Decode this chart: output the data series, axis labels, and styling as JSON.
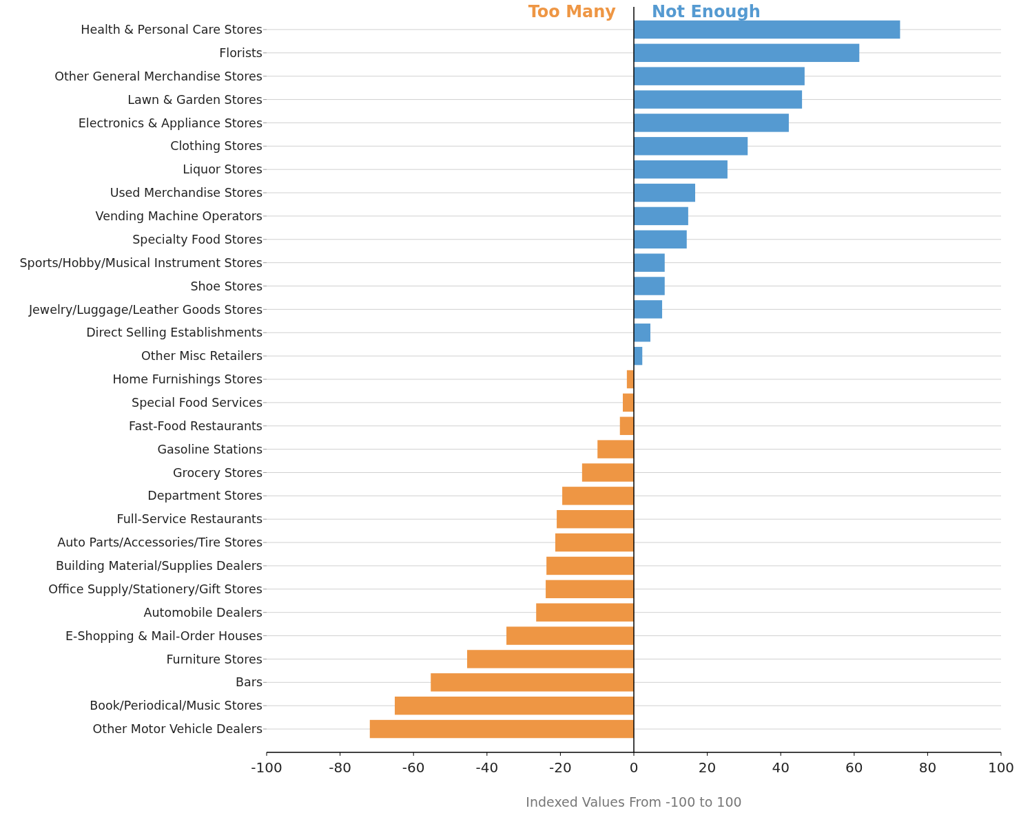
{
  "chart_data": {
    "type": "bar",
    "orientation": "horizontal",
    "xlabel": "Indexed Values From -100 to 100",
    "categories": [
      "Health & Personal Care Stores",
      "Florists",
      "Other General Merchandise Stores",
      "Lawn & Garden Stores",
      "Electronics & Appliance Stores",
      "Clothing Stores",
      "Liquor Stores",
      "Used Merchandise Stores",
      "Vending Machine Operators",
      "Specialty Food Stores",
      "Sports/Hobby/Musical Instrument Stores",
      "Shoe Stores",
      "Jewelry/Luggage/Leather Goods Stores",
      "Direct Selling Establishments",
      "Other Misc Retailers",
      "Home Furnishings Stores",
      "Special Food Services",
      "Fast-Food Restaurants",
      "Gasoline Stations",
      "Grocery Stores",
      "Department Stores",
      "Full-Service Restaurants",
      "Auto Parts/Accessories/Tire Stores",
      "Building Material/Supplies Dealers",
      "Office Supply/Stationery/Gift Stores",
      "Automobile Dealers",
      "E-Shopping & Mail-Order Houses",
      "Furniture Stores",
      "Bars",
      "Book/Periodical/Music Stores",
      "Other Motor Vehicle Dealers"
    ],
    "series": [
      {
        "name": "Too Many",
        "color": "#ee9644",
        "values": [
          null,
          null,
          null,
          null,
          null,
          null,
          null,
          null,
          null,
          null,
          null,
          null,
          null,
          null,
          null,
          -1.9,
          -3,
          -3.8,
          -9.9,
          -14.1,
          -19.5,
          -21,
          -21.4,
          -23.8,
          -24,
          -26.6,
          -34.7,
          -45.4,
          -55.3,
          -65.1,
          -71.9
        ]
      },
      {
        "name": "Not Enough",
        "color": "#559ad1",
        "values": [
          72.5,
          61.4,
          46.5,
          45.8,
          42.2,
          31,
          25.5,
          16.7,
          14.8,
          14.4,
          8.4,
          8.4,
          7.7,
          4.5,
          2.3,
          null,
          null,
          null,
          null,
          null,
          null,
          null,
          null,
          null,
          null,
          null,
          null,
          null,
          null,
          null,
          null
        ]
      }
    ],
    "xlim": [
      -100,
      100
    ],
    "xticks": [
      -100,
      -80,
      -60,
      -40,
      -20,
      0,
      20,
      40,
      60,
      80,
      100
    ],
    "grid": "y",
    "legend": "top"
  }
}
